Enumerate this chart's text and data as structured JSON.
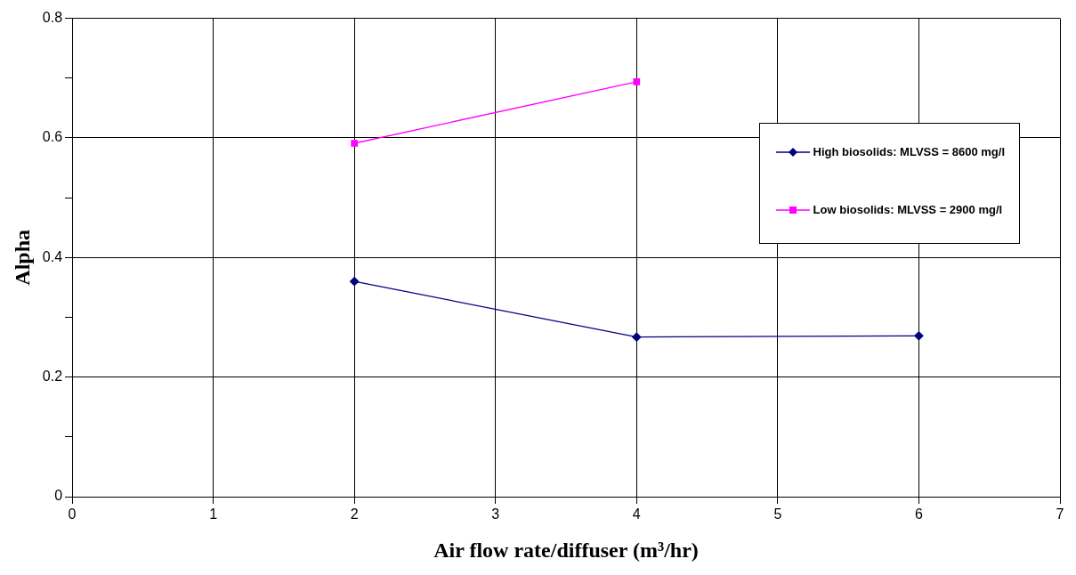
{
  "chart_data": {
    "type": "line",
    "xlabel": "Air flow rate/diffuser (m³/hr)",
    "ylabel": "Alpha",
    "xlim": [
      0,
      7
    ],
    "xticks": [
      0,
      1,
      2,
      3,
      4,
      5,
      6,
      7
    ],
    "ylim": [
      0,
      0.8
    ],
    "yticks": [
      0,
      {
        "value": 0.1,
        "label": null
      },
      0.2,
      {
        "value": 0.3,
        "label": null
      },
      0.4,
      {
        "value": 0.5,
        "label": null
      },
      0.6,
      {
        "value": 0.7,
        "label": null
      },
      0.8
    ],
    "grid": true,
    "legend": "right",
    "series": [
      {
        "name": "High biosolids: MLVSS = 8600 mg/l",
        "color": "#000080",
        "marker": "diamond",
        "x": [
          2,
          4,
          6
        ],
        "values": [
          0.36,
          0.267,
          0.269
        ]
      },
      {
        "name": "Low biosolids: MLVSS = 2900 mg/l",
        "color": "#ff00ff",
        "marker": "square",
        "x": [
          2,
          4
        ],
        "values": [
          0.591,
          0.694
        ]
      }
    ]
  }
}
